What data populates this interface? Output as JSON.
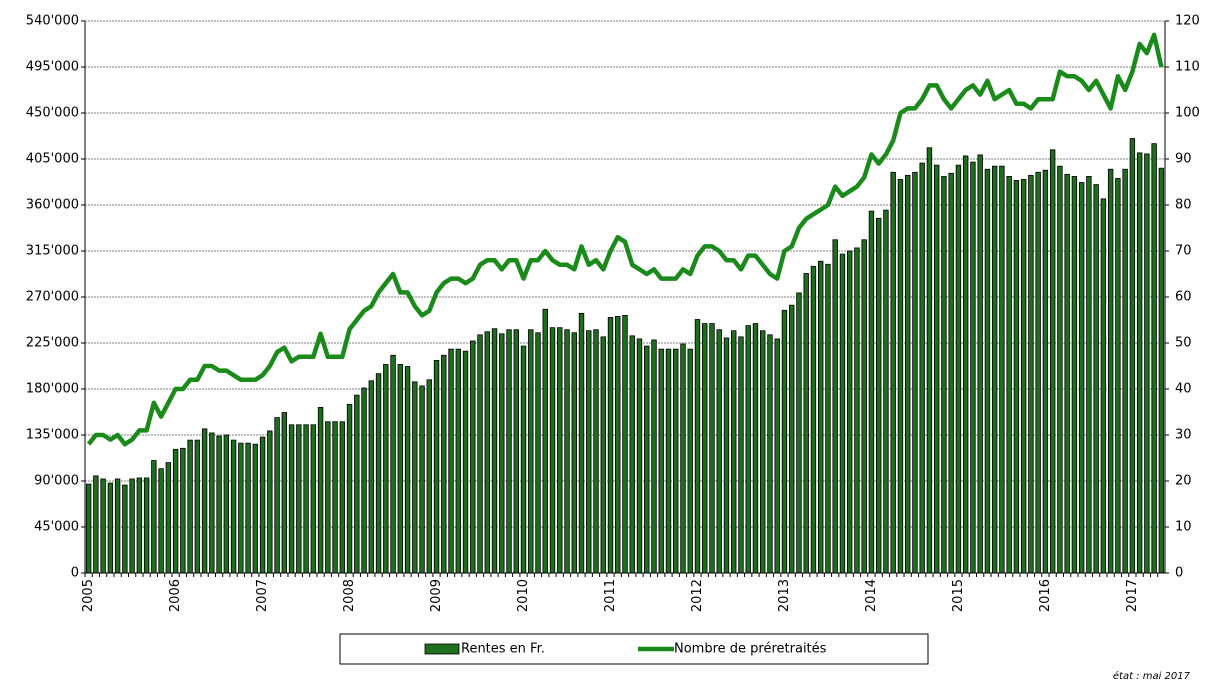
{
  "chart_data": {
    "type": "bar_line",
    "categories": [
      "2005",
      null,
      null,
      null,
      null,
      null,
      null,
      null,
      null,
      null,
      null,
      null,
      "2006",
      null,
      null,
      null,
      null,
      null,
      null,
      null,
      null,
      null,
      null,
      null,
      "2007",
      null,
      null,
      null,
      null,
      null,
      null,
      null,
      null,
      null,
      null,
      null,
      "2008",
      null,
      null,
      null,
      null,
      null,
      null,
      null,
      null,
      null,
      null,
      null,
      "2009",
      null,
      null,
      null,
      null,
      null,
      null,
      null,
      null,
      null,
      null,
      null,
      "2010",
      null,
      null,
      null,
      null,
      null,
      null,
      null,
      null,
      null,
      null,
      null,
      "2011",
      null,
      null,
      null,
      null,
      null,
      null,
      null,
      null,
      null,
      null,
      null,
      "2012",
      null,
      null,
      null,
      null,
      null,
      null,
      null,
      null,
      null,
      null,
      null,
      "2013",
      null,
      null,
      null,
      null,
      null,
      null,
      null,
      null,
      null,
      null,
      null,
      "2014",
      null,
      null,
      null,
      null,
      null,
      null,
      null,
      null,
      null,
      null,
      null,
      "2015",
      null,
      null,
      null,
      null,
      null,
      null,
      null,
      null,
      null,
      null,
      null,
      "2016",
      null,
      null,
      null,
      null,
      null,
      null,
      null,
      null,
      null,
      null,
      null,
      "2017",
      null,
      null,
      null,
      null
    ],
    "series": [
      {
        "name": "Rentes en Fr.",
        "type": "bar",
        "color": "#1e6e1e",
        "values": [
          87000,
          95000,
          92000,
          88000,
          92000,
          86000,
          92000,
          93000,
          93000,
          110000,
          102000,
          108000,
          121000,
          122000,
          130000,
          130000,
          141000,
          137000,
          134000,
          135000,
          130000,
          127000,
          127000,
          126000,
          133000,
          139000,
          152000,
          157000,
          145000,
          145000,
          145000,
          145000,
          162000,
          148000,
          148000,
          148000,
          165000,
          174000,
          181000,
          188000,
          195000,
          204000,
          213000,
          204000,
          202000,
          187000,
          183000,
          189000,
          208000,
          213000,
          219000,
          219000,
          217000,
          227000,
          233000,
          236000,
          239000,
          234000,
          238000,
          238000,
          222000,
          238000,
          235000,
          258000,
          240000,
          240000,
          238000,
          235000,
          254000,
          237000,
          238000,
          231000,
          250000,
          251000,
          252000,
          232000,
          229000,
          222000,
          228000,
          219000,
          219000,
          219000,
          224000,
          219000,
          248000,
          244000,
          244000,
          238000,
          230000,
          237000,
          231000,
          242000,
          244000,
          237000,
          233000,
          229000,
          257000,
          262000,
          274000,
          293000,
          300000,
          305000,
          302000,
          326000,
          312000,
          315000,
          318000,
          326000,
          354000,
          347000,
          355000,
          392000,
          385000,
          389000,
          392000,
          401000,
          416000,
          399000,
          388000,
          391000,
          399000,
          408000,
          402000,
          409000,
          395000,
          398000,
          398000,
          388000,
          384000,
          385000,
          389000,
          392000,
          394000,
          414000,
          398000,
          390000,
          388000,
          382000,
          388000,
          380000,
          366000,
          395000,
          386000,
          395000,
          425000,
          411000,
          410000,
          420000,
          396000
        ]
      },
      {
        "name": "Nombre de préretraités",
        "type": "line",
        "axis": "y2",
        "color": "#1a8a1a",
        "values": [
          28,
          30,
          30,
          29,
          30,
          28,
          29,
          31,
          31,
          37,
          34,
          37,
          40,
          40,
          42,
          42,
          45,
          45,
          44,
          44,
          43,
          42,
          42,
          42,
          43,
          45,
          48,
          49,
          46,
          47,
          47,
          47,
          52,
          47,
          47,
          47,
          53,
          55,
          57,
          58,
          61,
          63,
          65,
          61,
          61,
          58,
          56,
          57,
          61,
          63,
          64,
          64,
          63,
          64,
          67,
          68,
          68,
          66,
          68,
          68,
          64,
          68,
          68,
          70,
          68,
          67,
          67,
          66,
          71,
          67,
          68,
          66,
          70,
          73,
          72,
          67,
          66,
          65,
          66,
          64,
          64,
          64,
          66,
          65,
          69,
          71,
          71,
          70,
          68,
          68,
          66,
          69,
          69,
          67,
          65,
          64,
          70,
          71,
          75,
          77,
          78,
          79,
          80,
          84,
          82,
          83,
          84,
          86,
          91,
          89,
          91,
          94,
          100,
          101,
          101,
          103,
          106,
          106,
          103,
          101,
          103,
          105,
          106,
          104,
          107,
          103,
          104,
          105,
          102,
          102,
          101,
          103,
          103,
          103,
          109,
          108,
          108,
          107,
          105,
          107,
          104,
          101,
          108,
          105,
          109,
          115,
          113,
          117,
          110
        ]
      }
    ],
    "ylim": [
      0,
      540000
    ],
    "yticks": [
      0,
      {
        "value": 45000,
        "label": "45'000"
      },
      {
        "value": 90000,
        "label": "90'000"
      },
      {
        "value": 135000,
        "label": "135'000"
      },
      {
        "value": 180000,
        "label": "180'000"
      },
      {
        "value": 225000,
        "label": "225'000"
      },
      {
        "value": 270000,
        "label": "270'000"
      },
      {
        "value": 315000,
        "label": "315'000"
      },
      {
        "value": 360000,
        "label": "360'000"
      },
      {
        "value": 405000,
        "label": "405'000"
      },
      {
        "value": 450000,
        "label": "450'000"
      },
      {
        "value": 495000,
        "label": "495'000"
      },
      {
        "value": 540000,
        "label": "540'000"
      }
    ],
    "y2lim": [
      0,
      120
    ],
    "y2ticks": [
      0,
      10,
      20,
      30,
      40,
      50,
      60,
      70,
      80,
      90,
      100,
      110,
      120
    ],
    "grid": true,
    "legend": "bottom",
    "annotation": "état : mai 2017"
  }
}
